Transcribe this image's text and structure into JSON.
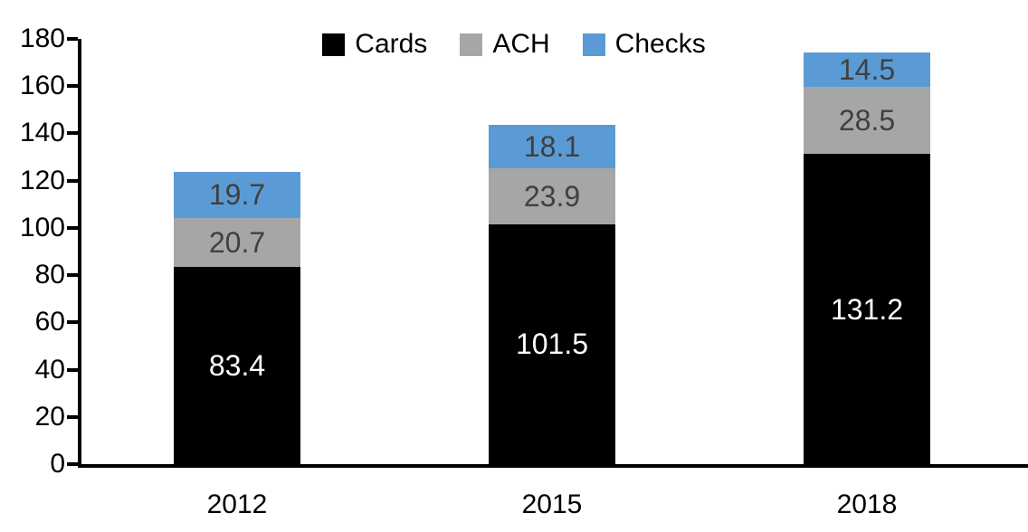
{
  "chart_data": {
    "type": "bar",
    "stacked": true,
    "title": "",
    "xlabel": "",
    "ylabel": "",
    "categories": [
      "2012",
      "2015",
      "2018"
    ],
    "series": [
      {
        "name": "Cards",
        "color": "#000000",
        "label_color": "#ffffff",
        "values": [
          83.4,
          101.5,
          131.2
        ]
      },
      {
        "name": "ACH",
        "color": "#A6A6A6",
        "label_color": "#404040",
        "values": [
          20.7,
          23.9,
          28.5
        ]
      },
      {
        "name": "Checks",
        "color": "#5B9BD5",
        "label_color": "#404040",
        "values": [
          19.7,
          18.1,
          14.5
        ]
      }
    ],
    "ylim": [
      0,
      180
    ],
    "yticks": [
      0,
      20,
      40,
      60,
      80,
      100,
      120,
      140,
      160,
      180
    ],
    "grid": false,
    "legend_position": "top-center",
    "value_label_decimals": 1,
    "axis_color": "#000000",
    "background_color": "#ffffff"
  }
}
